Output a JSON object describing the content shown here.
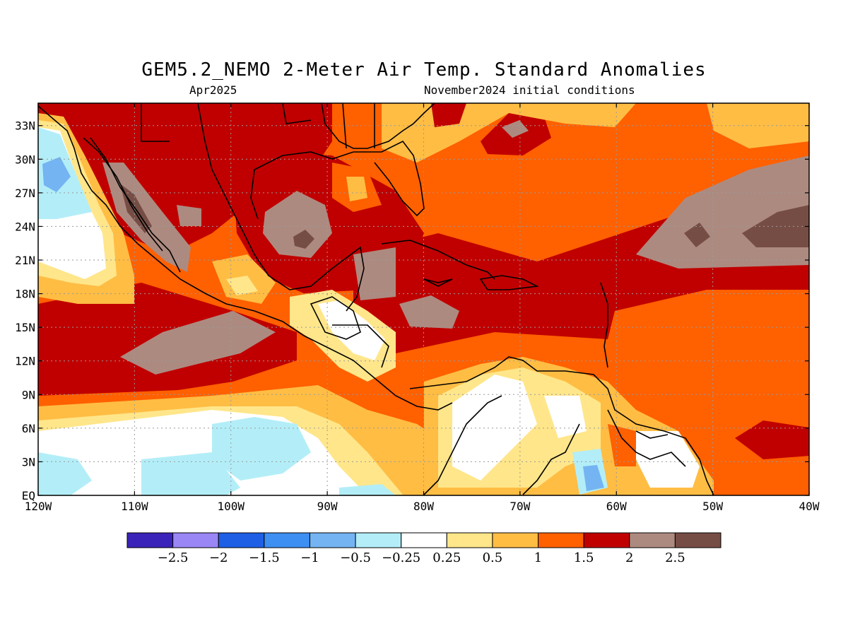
{
  "title": "GEM5.2_NEMO 2-Meter Air Temp. Standard Anomalies",
  "subtitle_left": "Apr2025",
  "subtitle_right": "November2024 initial conditions",
  "map": {
    "lon_range": [
      -120,
      -40
    ],
    "lat_range": [
      0,
      35
    ],
    "grid": "dotted",
    "lat_ticks": [
      {
        "value": 33,
        "label": "33N"
      },
      {
        "value": 30,
        "label": "30N"
      },
      {
        "value": 27,
        "label": "27N"
      },
      {
        "value": 24,
        "label": "24N"
      },
      {
        "value": 21,
        "label": "21N"
      },
      {
        "value": 18,
        "label": "18N"
      },
      {
        "value": 15,
        "label": "15N"
      },
      {
        "value": 12,
        "label": "12N"
      },
      {
        "value": 9,
        "label": "9N"
      },
      {
        "value": 6,
        "label": "6N"
      },
      {
        "value": 3,
        "label": "3N"
      },
      {
        "value": 0,
        "label": "EQ"
      }
    ],
    "lon_ticks": [
      {
        "value": -120,
        "label": "120W"
      },
      {
        "value": -110,
        "label": "110W"
      },
      {
        "value": -100,
        "label": "100W"
      },
      {
        "value": -90,
        "label": "90W"
      },
      {
        "value": -80,
        "label": "80W"
      },
      {
        "value": -70,
        "label": "70W"
      },
      {
        "value": -60,
        "label": "60W"
      },
      {
        "value": -50,
        "label": "50W"
      },
      {
        "value": -40,
        "label": "40W"
      }
    ]
  },
  "colorbar": {
    "colors": [
      "#3a23b8",
      "#9a86f5",
      "#1f5fe6",
      "#3d8ff2",
      "#74b4f2",
      "#b3eef8",
      "#ffffff",
      "#ffe68a",
      "#ffbd44",
      "#ff6000",
      "#c00000",
      "#ad8a80",
      "#764d45"
    ],
    "labels": [
      "-2.5",
      "-2",
      "-1.5",
      "-1",
      "-0.5",
      "-0.25",
      "0.25",
      "0.5",
      "1",
      "1.5",
      "2",
      "2.5"
    ]
  }
}
